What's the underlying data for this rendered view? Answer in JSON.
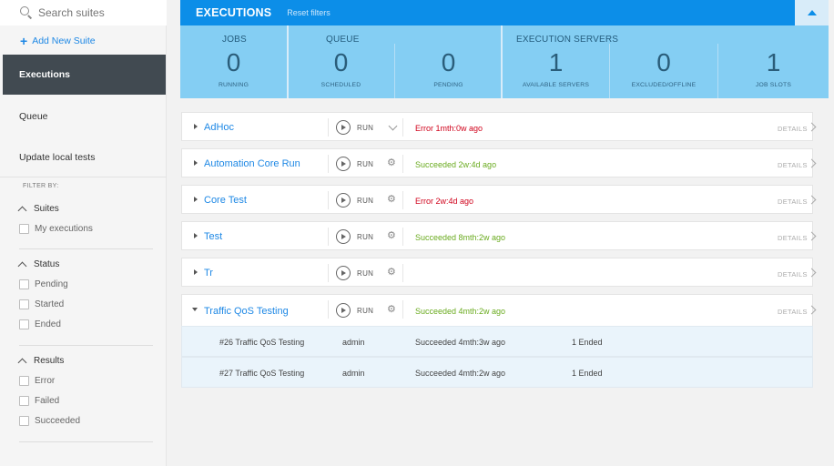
{
  "sidebar": {
    "search_placeholder": "Search suites",
    "add_suite": "Add New Suite",
    "nav": [
      "Executions",
      "Queue",
      "Update local tests"
    ],
    "filter_by": "FILTER BY:",
    "groups": [
      {
        "title": "Suites",
        "options": [
          "My executions"
        ]
      },
      {
        "title": "Status",
        "options": [
          "Pending",
          "Started",
          "Ended"
        ]
      },
      {
        "title": "Results",
        "options": [
          "Error",
          "Failed",
          "Succeeded"
        ]
      }
    ]
  },
  "header": {
    "title": "EXECUTIONS",
    "reset": "Reset filters"
  },
  "stats": {
    "groups": [
      "JOBS",
      "QUEUE",
      "EXECUTION SERVERS"
    ],
    "cells": [
      {
        "value": "0",
        "label": "RUNNING"
      },
      {
        "value": "0",
        "label": "SCHEDULED"
      },
      {
        "value": "0",
        "label": "PENDING"
      },
      {
        "value": "1",
        "label": "AVAILABLE SERVERS"
      },
      {
        "value": "0",
        "label": "EXCLUDED/OFFLINE"
      },
      {
        "value": "1",
        "label": "JOB SLOTS"
      }
    ]
  },
  "run_label": "RUN",
  "details_label": "DETAILS",
  "suites": [
    {
      "name": "AdHoc",
      "status": "Error 1mth:0w ago",
      "kind": "error",
      "icon": "chevron-down"
    },
    {
      "name": "Automation Core Run",
      "status": "Succeeded 2w:4d ago",
      "kind": "success",
      "icon": "gear"
    },
    {
      "name": "Core Test",
      "status": "Error 2w:4d ago",
      "kind": "error",
      "icon": "gear"
    },
    {
      "name": "Test",
      "status": "Succeeded 8mth:2w ago",
      "kind": "success",
      "icon": "gear"
    },
    {
      "name": "Tr",
      "status": "",
      "kind": "",
      "icon": "gear"
    },
    {
      "name": "Traffic QoS Testing",
      "status": "Succeeded 4mth:2w ago",
      "kind": "success",
      "icon": "gear",
      "expanded": true
    }
  ],
  "executions": [
    {
      "name": "#26 Traffic QoS Testing",
      "user": "admin",
      "result": "Succeeded 4mth:3w ago",
      "count": "1 Ended"
    },
    {
      "name": "#27 Traffic QoS Testing",
      "user": "admin",
      "result": "Succeeded 4mth:2w ago",
      "count": "1 Ended"
    }
  ]
}
